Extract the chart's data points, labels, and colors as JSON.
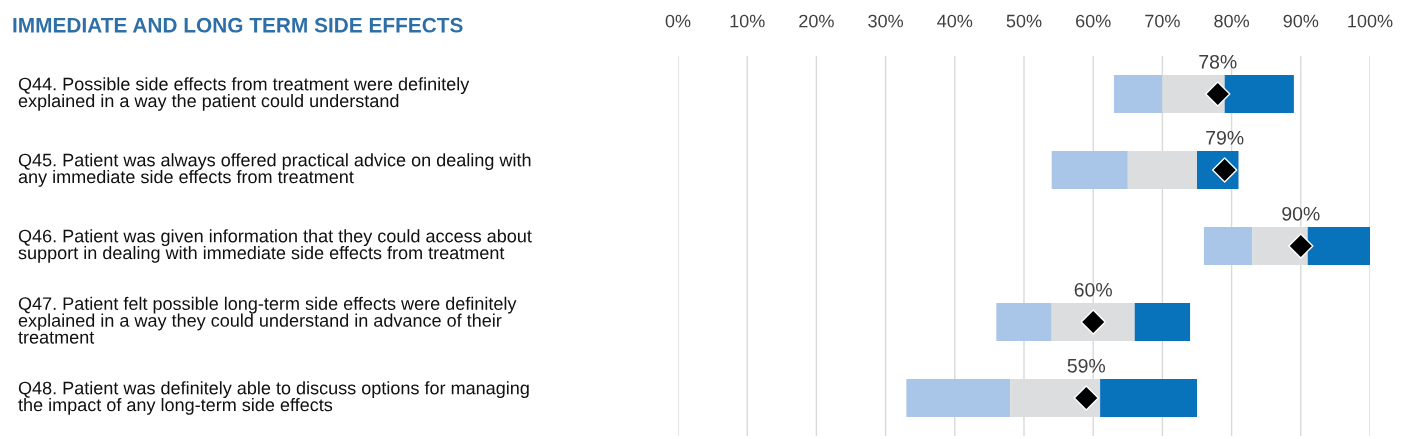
{
  "chart_data": {
    "type": "bar",
    "title": "IMMEDIATE AND LONG TERM SIDE EFFECTS",
    "orientation": "horizontal",
    "categories": [
      "Q44. Possible side effects from treatment were definitely\nexplained in a way the patient could understand",
      "Q45. Patient was always offered practical advice on dealing with\nany immediate side effects from treatment",
      "Q46. Patient was given information that they could access about\nsupport in dealing with immediate side effects from treatment",
      "Q47. Patient felt possible long-term side effects were definitely\nexplained in a way they could understand in advance of their\ntreatment",
      "Q48. Patient was definitely able to discuss options for managing\nthe impact of any long-term side effects"
    ],
    "series": [
      {
        "color": "#a9c6e8",
        "base": [
          63,
          54,
          76,
          46,
          33
        ],
        "values": [
          7,
          11,
          7,
          8,
          15
        ]
      },
      {
        "color": "#dcdddf",
        "base": [
          70,
          65,
          83,
          54,
          48
        ],
        "values": [
          9,
          10,
          8,
          12,
          13
        ]
      },
      {
        "color": "#0873bb",
        "base": [
          79,
          75,
          91,
          66,
          61
        ],
        "values": [
          10,
          6,
          9,
          8,
          14
        ]
      },
      {
        "type": "scatter",
        "color": "#000000",
        "marker": "diamond",
        "values": [
          78,
          79,
          90,
          60,
          59
        ],
        "value_labels": [
          "78%",
          "79%",
          "90%",
          "60%",
          "59%"
        ]
      }
    ],
    "xlim": [
      0,
      100
    ],
    "xticks": [
      {
        "value": 0,
        "label": "0%"
      },
      {
        "value": 10,
        "label": "10%"
      },
      {
        "value": 20,
        "label": "20%"
      },
      {
        "value": 30,
        "label": "30%"
      },
      {
        "value": 40,
        "label": "40%"
      },
      {
        "value": 50,
        "label": "50%"
      },
      {
        "value": 60,
        "label": "60%"
      },
      {
        "value": 70,
        "label": "70%"
      },
      {
        "value": 80,
        "label": "80%"
      },
      {
        "value": 90,
        "label": "90%"
      },
      {
        "value": 100,
        "label": "100%"
      }
    ],
    "grid": "x",
    "legend": false
  }
}
